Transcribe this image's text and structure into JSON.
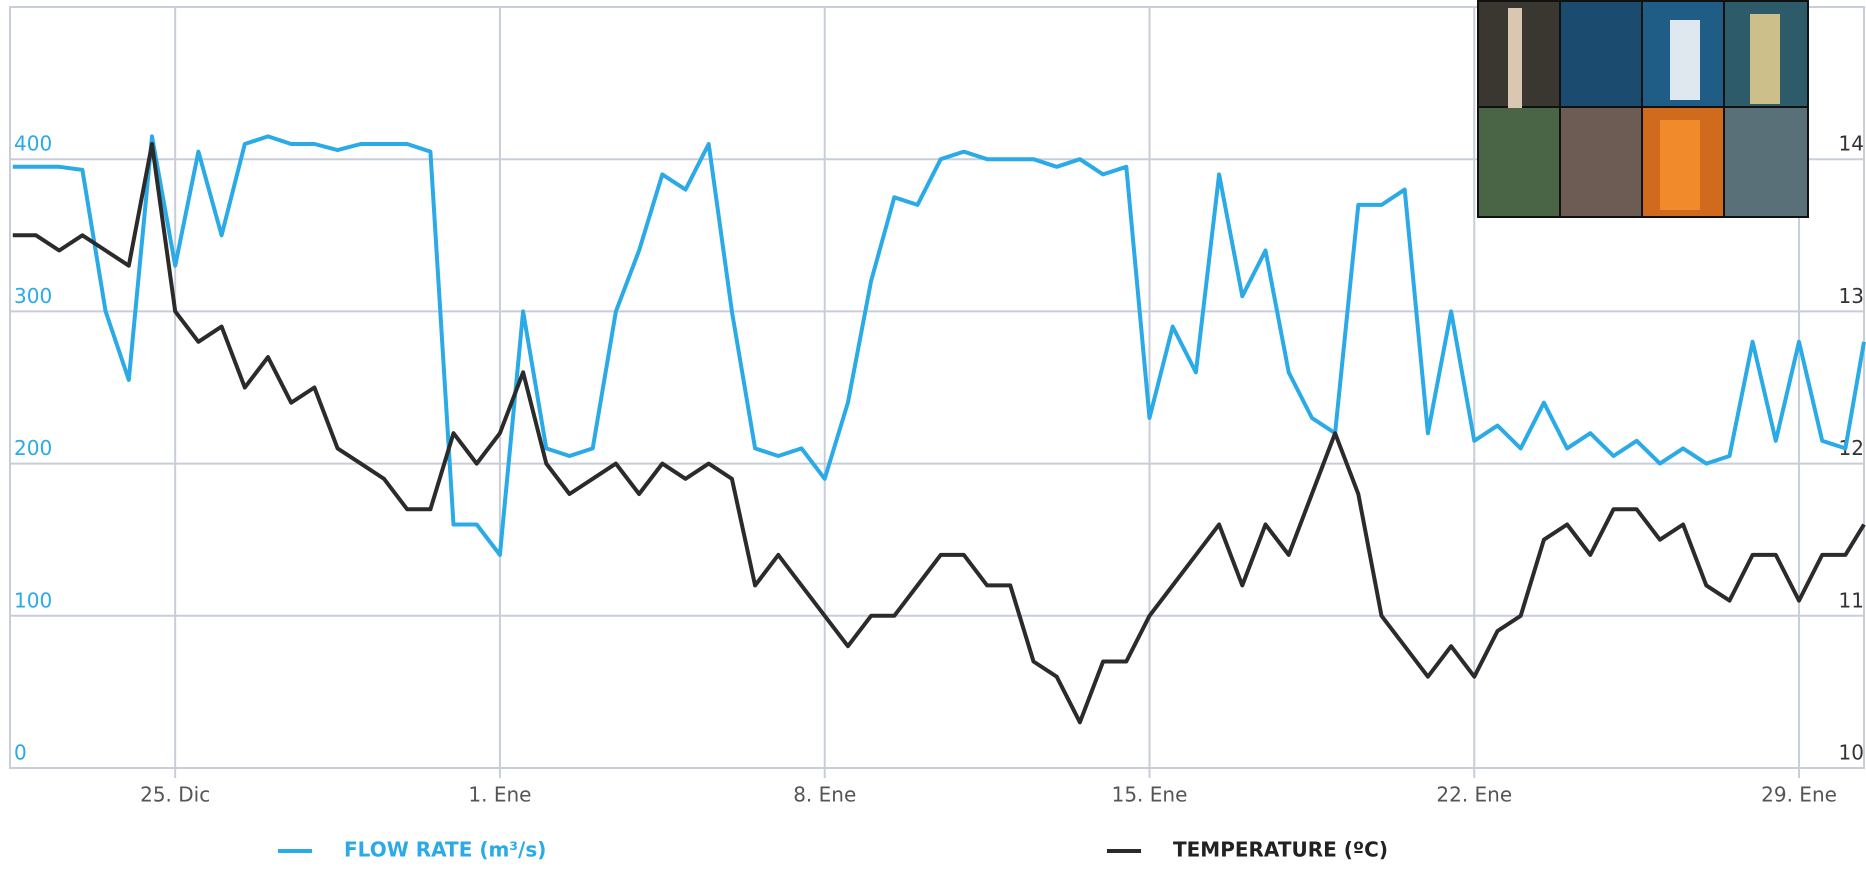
{
  "chart_data": {
    "type": "line",
    "x": [
      -3.5,
      -3,
      -2.5,
      -2,
      -1.5,
      -1,
      -0.5,
      0,
      0.5,
      1,
      1.5,
      2,
      2.5,
      3,
      3.5,
      4,
      4.5,
      5,
      5.5,
      6,
      6.5,
      7,
      7.5,
      8,
      8.5,
      9,
      9.5,
      10,
      10.5,
      11,
      11.5,
      12,
      12.5,
      13,
      13.5,
      14,
      14.5,
      15,
      15.5,
      16,
      16.5,
      17,
      17.5,
      18,
      18.5,
      19,
      19.5,
      20,
      20.5,
      21,
      21.5,
      22,
      22.5,
      23,
      23.5,
      24,
      24.5,
      25,
      25.5,
      26,
      26.5,
      27,
      27.5,
      28,
      28.5,
      29,
      29.5,
      30,
      30.5,
      31,
      31.5,
      32,
      32.5,
      33,
      33.5,
      34,
      34.5,
      35,
      35.5,
      36,
      36.4
    ],
    "xlim": [
      -3.56,
      36.4
    ],
    "xticks": [
      {
        "value": 0,
        "label": "25. Dic"
      },
      {
        "value": 7,
        "label": "1. Ene"
      },
      {
        "value": 14,
        "label": "8. Ene"
      },
      {
        "value": 21,
        "label": "15. Ene"
      },
      {
        "value": 28,
        "label": "22. Ene"
      },
      {
        "value": 35,
        "label": "29. Ene"
      }
    ],
    "ylim": [
      0,
      500
    ],
    "yticks": [
      0,
      100,
      200,
      300,
      400
    ],
    "y2lim": [
      10,
      15
    ],
    "y2ticks": [
      10,
      11,
      12,
      13,
      14
    ],
    "grid": true,
    "legend": "bottom",
    "series": [
      {
        "name": "FLOW RATE (m³/s)",
        "color": "#2aaae6",
        "values": [
          395,
          395,
          395,
          393,
          300,
          255,
          415,
          330,
          405,
          350,
          410,
          415,
          410,
          410,
          406,
          410,
          410,
          410,
          405,
          160,
          160,
          140,
          300,
          210,
          205,
          210,
          300,
          340,
          390,
          380,
          410,
          300,
          210,
          205,
          210,
          190,
          240,
          320,
          375,
          370,
          400,
          405,
          400,
          400,
          400,
          395,
          400,
          390,
          395,
          230,
          290,
          260,
          390,
          310,
          340,
          260,
          230,
          220,
          370,
          370,
          380,
          220,
          300,
          215,
          225,
          210,
          240,
          210,
          220,
          205,
          215,
          200,
          210,
          200,
          205,
          280,
          215,
          280,
          215,
          210,
          280
        ]
      },
      {
        "name": "TEMPERATURE (ºC)",
        "color": "#2b2b2b",
        "axis": "y2",
        "values": [
          13.5,
          13.5,
          13.4,
          13.5,
          13.4,
          13.3,
          14.1,
          13.0,
          12.8,
          12.9,
          12.5,
          12.7,
          12.4,
          12.5,
          12.1,
          12.0,
          11.9,
          11.7,
          11.7,
          12.2,
          12.0,
          12.2,
          12.6,
          12.0,
          11.8,
          11.9,
          12.0,
          11.8,
          12.0,
          11.9,
          12.0,
          11.9,
          11.2,
          11.4,
          11.2,
          11.0,
          10.8,
          11.0,
          11.0,
          11.2,
          11.4,
          11.4,
          11.2,
          11.2,
          10.7,
          10.6,
          10.3,
          10.7,
          10.7,
          11.0,
          11.2,
          11.4,
          11.6,
          11.2,
          11.6,
          11.4,
          11.8,
          12.2,
          11.8,
          11.0,
          10.8,
          10.6,
          10.8,
          10.6,
          10.9,
          11.0,
          11.5,
          11.6,
          11.4,
          11.7,
          11.7,
          11.5,
          11.6,
          11.2,
          11.1,
          11.4,
          11.4,
          11.1,
          11.4,
          11.4,
          11.6
        ]
      }
    ]
  }
}
